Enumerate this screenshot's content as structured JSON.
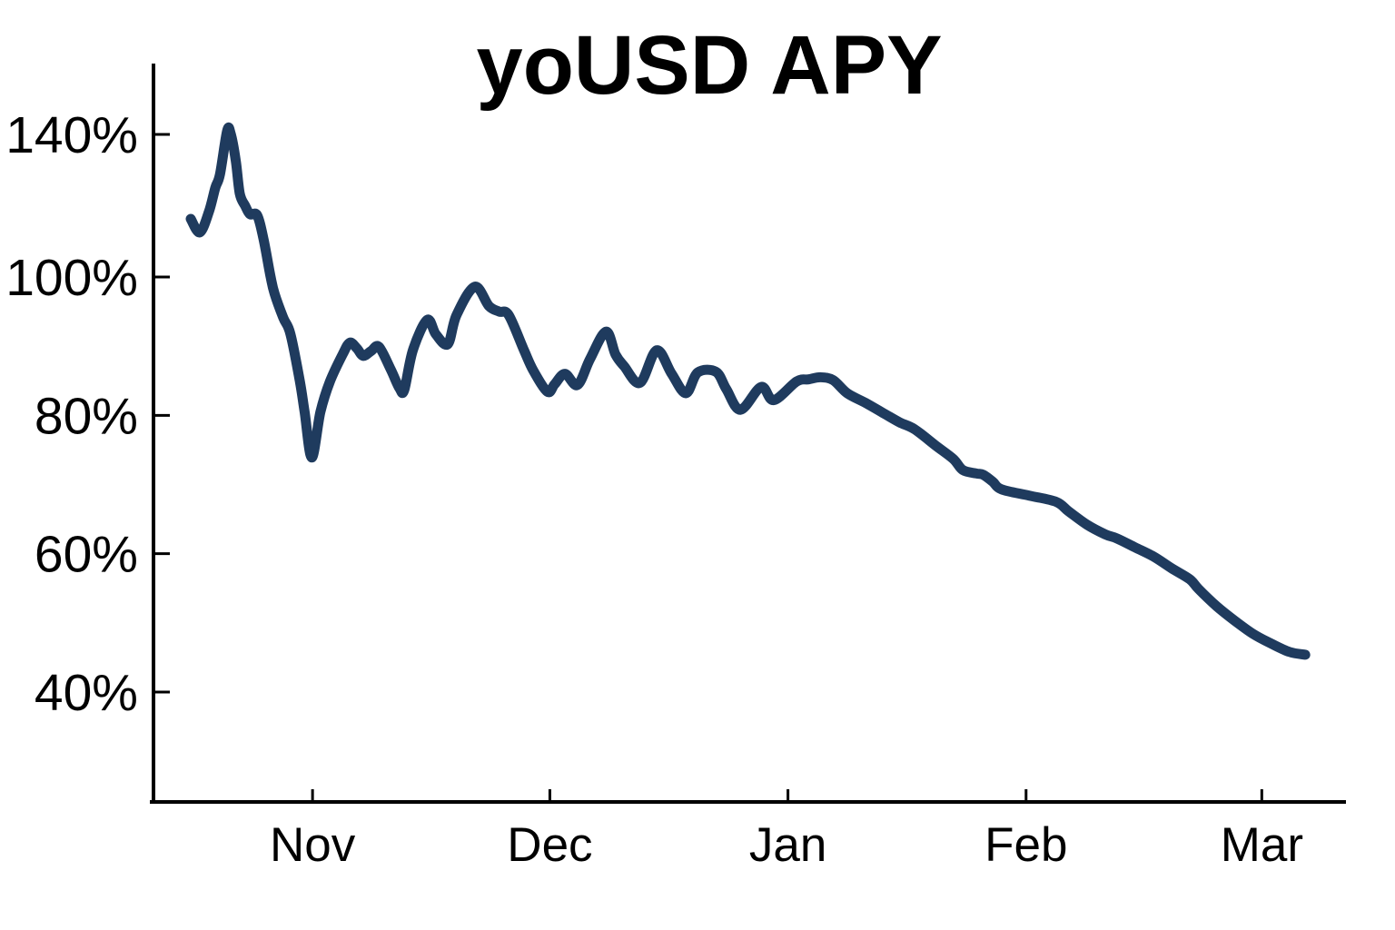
{
  "chart": {
    "title": "yoUSD APY"
  },
  "chart_data": {
    "type": "line",
    "title": "yoUSD APY",
    "series_name": "yoUSD APY",
    "unit": "%",
    "line_color": "#1f3b5e",
    "axis_color": "#000000",
    "background_color": "#ffffff",
    "grid": false,
    "legend": false,
    "y_axis": {
      "tick_labels": [
        "140%",
        "100%",
        "80%",
        "60%",
        "40%"
      ],
      "tick_values": [
        140,
        100,
        80,
        60,
        40
      ],
      "note": "axis compressed above 100% (140 tick sits one step above 100)"
    },
    "x_axis": {
      "tick_labels": [
        "Nov",
        "Dec",
        "Jan",
        "Feb",
        "Mar"
      ],
      "tick_days": [
        15.4,
        45.4,
        75.5,
        105.6,
        135.4
      ],
      "note": "day 0 = start of series (~mid-Oct), ~141 days total"
    },
    "points": [
      [
        0,
        116.3
      ],
      [
        1.15,
        112.5
      ],
      [
        2.3,
        118.3
      ],
      [
        3.1,
        125.0
      ],
      [
        3.7,
        128.8
      ],
      [
        4.6,
        141.0
      ],
      [
        5.05,
        140.2
      ],
      [
        5.7,
        132.6
      ],
      [
        6.2,
        123.4
      ],
      [
        6.9,
        119.9
      ],
      [
        7.5,
        117.6
      ],
      [
        8.4,
        117.3
      ],
      [
        9.2,
        110.7
      ],
      [
        10.1,
        100.0
      ],
      [
        10.6,
        97.6
      ],
      [
        11.7,
        94.1
      ],
      [
        12.6,
        91.8
      ],
      [
        13.8,
        84.9
      ],
      [
        14.4,
        80.5
      ],
      [
        15.3,
        73.9
      ],
      [
        16.4,
        80.5
      ],
      [
        17.6,
        84.9
      ],
      [
        19.2,
        88.8
      ],
      [
        20.1,
        90.5
      ],
      [
        21.0,
        89.7
      ],
      [
        21.8,
        88.6
      ],
      [
        22.8,
        89.3
      ],
      [
        23.8,
        89.9
      ],
      [
        25.3,
        86.6
      ],
      [
        26.4,
        83.9
      ],
      [
        27.0,
        83.7
      ],
      [
        28.1,
        89.5
      ],
      [
        29.9,
        93.8
      ],
      [
        31.0,
        91.7
      ],
      [
        32.5,
        90.3
      ],
      [
        33.6,
        94.5
      ],
      [
        35.9,
        98.6
      ],
      [
        37.7,
        95.8
      ],
      [
        39.0,
        95.0
      ],
      [
        40.2,
        94.5
      ],
      [
        42.1,
        89.5
      ],
      [
        43.3,
        86.5
      ],
      [
        45.1,
        83.4
      ],
      [
        46.0,
        84.5
      ],
      [
        47.3,
        86.0
      ],
      [
        48.9,
        84.4
      ],
      [
        50.5,
        88.2
      ],
      [
        52.5,
        92.1
      ],
      [
        53.7,
        88.8
      ],
      [
        54.8,
        87.1
      ],
      [
        56.8,
        84.7
      ],
      [
        58.9,
        89.4
      ],
      [
        60.8,
        86.0
      ],
      [
        62.6,
        83.2
      ],
      [
        64.1,
        86.2
      ],
      [
        66.4,
        86.3
      ],
      [
        67.7,
        83.8
      ],
      [
        69.5,
        80.8
      ],
      [
        72.1,
        84.1
      ],
      [
        73.7,
        82.2
      ],
      [
        76.6,
        84.9
      ],
      [
        78.1,
        85.2
      ],
      [
        79.6,
        85.5
      ],
      [
        81.2,
        85.1
      ],
      [
        83.0,
        83.2
      ],
      [
        85.3,
        81.8
      ],
      [
        87.6,
        80.3
      ],
      [
        89.6,
        79.0
      ],
      [
        91.5,
        78.0
      ],
      [
        94.1,
        75.7
      ],
      [
        96.4,
        73.7
      ],
      [
        97.6,
        72.1
      ],
      [
        99.3,
        71.6
      ],
      [
        100.2,
        71.4
      ],
      [
        101.4,
        70.4
      ],
      [
        102.5,
        69.3
      ],
      [
        106.0,
        68.4
      ],
      [
        109.4,
        67.5
      ],
      [
        111.0,
        66.1
      ],
      [
        113.3,
        64.2
      ],
      [
        115.6,
        62.8
      ],
      [
        117.1,
        62.2
      ],
      [
        119.4,
        60.9
      ],
      [
        121.7,
        59.6
      ],
      [
        124.0,
        57.9
      ],
      [
        126.3,
        56.3
      ],
      [
        127.4,
        54.9
      ],
      [
        129.7,
        52.4
      ],
      [
        132.0,
        50.3
      ],
      [
        134.3,
        48.4
      ],
      [
        136.6,
        47.0
      ],
      [
        138.9,
        45.8
      ],
      [
        140.9,
        45.4
      ]
    ]
  }
}
